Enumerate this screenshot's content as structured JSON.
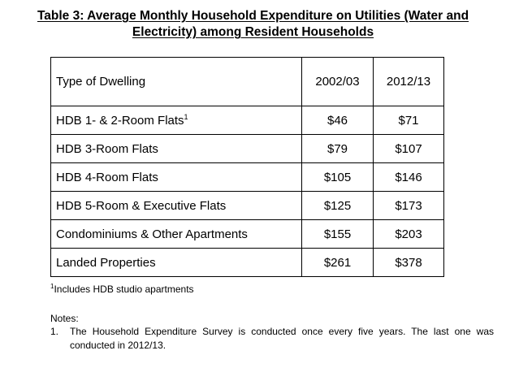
{
  "title": {
    "line1": "Table 3: Average Monthly Household Expenditure on Utilities (Water and",
    "line2": "Electricity) among Resident Households"
  },
  "table": {
    "headers": [
      "Type of Dwelling",
      "2002/03",
      "2012/13"
    ],
    "rows": [
      {
        "type": "HDB 1- & 2-Room Flats",
        "sup": "1",
        "y2002": "$46",
        "y2012": "$71"
      },
      {
        "type": "HDB 3-Room Flats",
        "y2002": "$79",
        "y2012": "$107"
      },
      {
        "type": "HDB 4-Room Flats",
        "y2002": "$105",
        "y2012": "$146"
      },
      {
        "type": "HDB 5-Room & Executive Flats",
        "y2002": "$125",
        "y2012": "$173"
      },
      {
        "type": "Condominiums & Other Apartments",
        "y2002": "$155",
        "y2012": "$203"
      },
      {
        "type": "Landed Properties",
        "y2002": "$261",
        "y2012": "$378"
      }
    ]
  },
  "footnote": {
    "marker": "1",
    "text": "Includes HDB studio apartments"
  },
  "notes": {
    "title": "Notes:",
    "items": [
      {
        "number": "1.",
        "text": "The Household Expenditure Survey is conducted once every five years. The last one was conducted in 2012/13."
      }
    ]
  }
}
